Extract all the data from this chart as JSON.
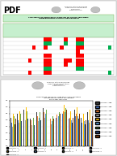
{
  "page_bg": "#e0e0e0",
  "top_page_bg": "#ffffff",
  "bottom_page_bg": "#ffffff",
  "top_header_text": "Republic of the Philippines\nDepartment of Education\nREGION XI - DAVAO REGION\nDavao del Norte - Sto. Tomas Division",
  "top_title": "SYNTHESIS OF INDIVIDUAL IPCRF-PD OF AP-EsP SAMPLE TEACHERS IN XXXXXXX\nINDEPENDENCE DISTRICT DEPARTMENT",
  "table_header_bg": "#c6efce",
  "table_title_bg": "#c6efce",
  "cell_red": "#ff0000",
  "cell_green": "#00b050",
  "cell_light_green": "#92d050",
  "rows": 9,
  "cols": 25,
  "bar_colors": [
    "#404040",
    "#4472c4",
    "#ed7d31",
    "#a5a5a5",
    "#ffc000",
    "#5b9bd5",
    "#70ad47",
    "#264478",
    "#843c0c"
  ],
  "bar_data": [
    [
      3.2,
      3.5,
      3.8,
      3.1,
      3.6,
      3.9,
      3.3,
      3.7,
      4.0,
      3.4,
      3.8,
      3.2,
      3.6
    ],
    [
      2.8,
      3.0,
      3.2,
      2.9,
      3.1,
      3.4,
      3.0,
      3.2,
      3.5,
      3.1,
      3.3,
      2.8,
      3.0
    ],
    [
      3.0,
      3.2,
      3.5,
      3.0,
      3.3,
      3.6,
      3.1,
      3.4,
      3.7,
      3.2,
      3.5,
      3.0,
      3.2
    ],
    [
      2.5,
      2.8,
      3.0,
      2.6,
      2.9,
      3.2,
      2.7,
      3.0,
      3.3,
      2.8,
      3.1,
      2.5,
      2.8
    ],
    [
      3.5,
      3.7,
      4.0,
      3.4,
      3.8,
      4.1,
      3.6,
      3.9,
      4.2,
      3.7,
      4.0,
      3.5,
      3.8
    ],
    [
      2.9,
      3.1,
      3.3,
      2.8,
      3.2,
      3.5,
      2.9,
      3.3,
      3.6,
      3.0,
      3.3,
      2.9,
      3.1
    ],
    [
      3.3,
      3.5,
      3.7,
      3.2,
      3.6,
      3.8,
      3.3,
      3.6,
      3.9,
      3.4,
      3.7,
      3.2,
      3.5
    ],
    [
      2.7,
      2.9,
      3.1,
      2.6,
      3.0,
      3.2,
      2.7,
      3.0,
      3.3,
      2.8,
      3.1,
      2.7,
      2.9
    ],
    [
      3.1,
      3.3,
      3.6,
      3.0,
      3.4,
      3.7,
      3.1,
      3.5,
      3.8,
      3.2,
      3.5,
      3.0,
      3.3
    ]
  ],
  "bar_labels": [
    "INDICATOR 1 - OBJECTIVE 1",
    "INDICATOR 2 - OBJECTIVE 2",
    "INDICATOR 3 - OBJECTIVE 3",
    "INDICATOR 4 - OBJECTIVE 4",
    "INDICATOR 5 - OBJECTIVE 5",
    "INDICATOR 6 - OBJECTIVE 6",
    "INDICATOR 7 - OBJECTIVE 7",
    "INDICATOR 8 - OBJECTIVE 8",
    "INDICATOR 9 - OBJECTIVE 9"
  ],
  "x_labels": [
    "T1",
    "T2",
    "T3",
    "T4",
    "T5",
    "T6",
    "T7",
    "T8",
    "T9",
    "T10",
    "T11",
    "T12",
    "T13"
  ],
  "y_min": 1.0,
  "y_max": 4.5,
  "bottom_title": "COMPARATIVE INDIVIDUAL IPCRF-PD OF AP-EsP TEACHERS IN XXXXXXX INDEPENDENCE DISTRICT DEPARTMENT",
  "bottom_subtitle": "School Year 2020-2021"
}
